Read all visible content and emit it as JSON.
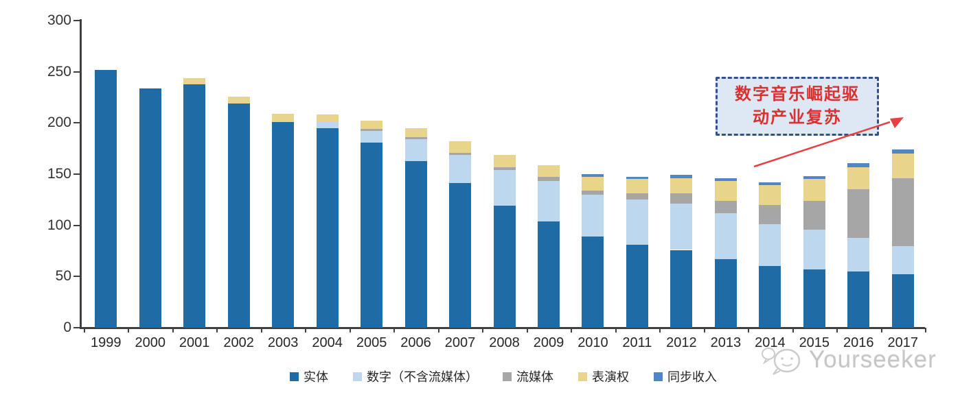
{
  "chart_data": {
    "type": "bar",
    "stacked": true,
    "categories": [
      "1999",
      "2000",
      "2001",
      "2002",
      "2003",
      "2004",
      "2005",
      "2006",
      "2007",
      "2008",
      "2009",
      "2010",
      "2011",
      "2012",
      "2013",
      "2014",
      "2015",
      "2016",
      "2017"
    ],
    "series": [
      {
        "name": "实体",
        "color": "#1f6ba6",
        "values": [
          252,
          234,
          238,
          219,
          201,
          195,
          181,
          163,
          141,
          119,
          104,
          89,
          81,
          76,
          67,
          60,
          57,
          55,
          52
        ]
      },
      {
        "name": "数字（不含流媒体）",
        "color": "#bdd7ee",
        "values": [
          0,
          0,
          0,
          0,
          0,
          6,
          11,
          21,
          28,
          35,
          39,
          41,
          44,
          45,
          45,
          41,
          39,
          33,
          28
        ]
      },
      {
        "name": "流媒体",
        "color": "#a6a6a6",
        "values": [
          0,
          0,
          0,
          0,
          0,
          0,
          2,
          2,
          2,
          3,
          4,
          4,
          6,
          10,
          12,
          19,
          28,
          47,
          66
        ]
      },
      {
        "name": "表演权",
        "color": "#e8d48b",
        "values": [
          0,
          0,
          6,
          7,
          8,
          7,
          8,
          9,
          11,
          12,
          12,
          13,
          14,
          15,
          19,
          19,
          21,
          22,
          24
        ]
      },
      {
        "name": "同步收入",
        "color": "#4e86c6",
        "values": [
          0,
          0,
          0,
          0,
          0,
          0,
          0,
          0,
          0,
          0,
          0,
          3,
          2,
          3,
          3,
          3,
          3,
          4,
          4
        ]
      }
    ],
    "title": "",
    "xlabel": "",
    "ylabel": "",
    "ylim": [
      0,
      300
    ],
    "yticks": [
      0,
      50,
      100,
      150,
      200,
      250,
      300
    ],
    "grid": false,
    "legend_position": "bottom"
  },
  "annotation": {
    "line1": "数字音乐崛起驱",
    "line2": "动产业复苏",
    "text_color": "#d93030",
    "border_color": "#33518e",
    "fill_color": "#dee7f4",
    "arrow_color": "#e84040"
  },
  "watermark": {
    "text": "Yourseeker",
    "color": "#c6c6c6"
  }
}
